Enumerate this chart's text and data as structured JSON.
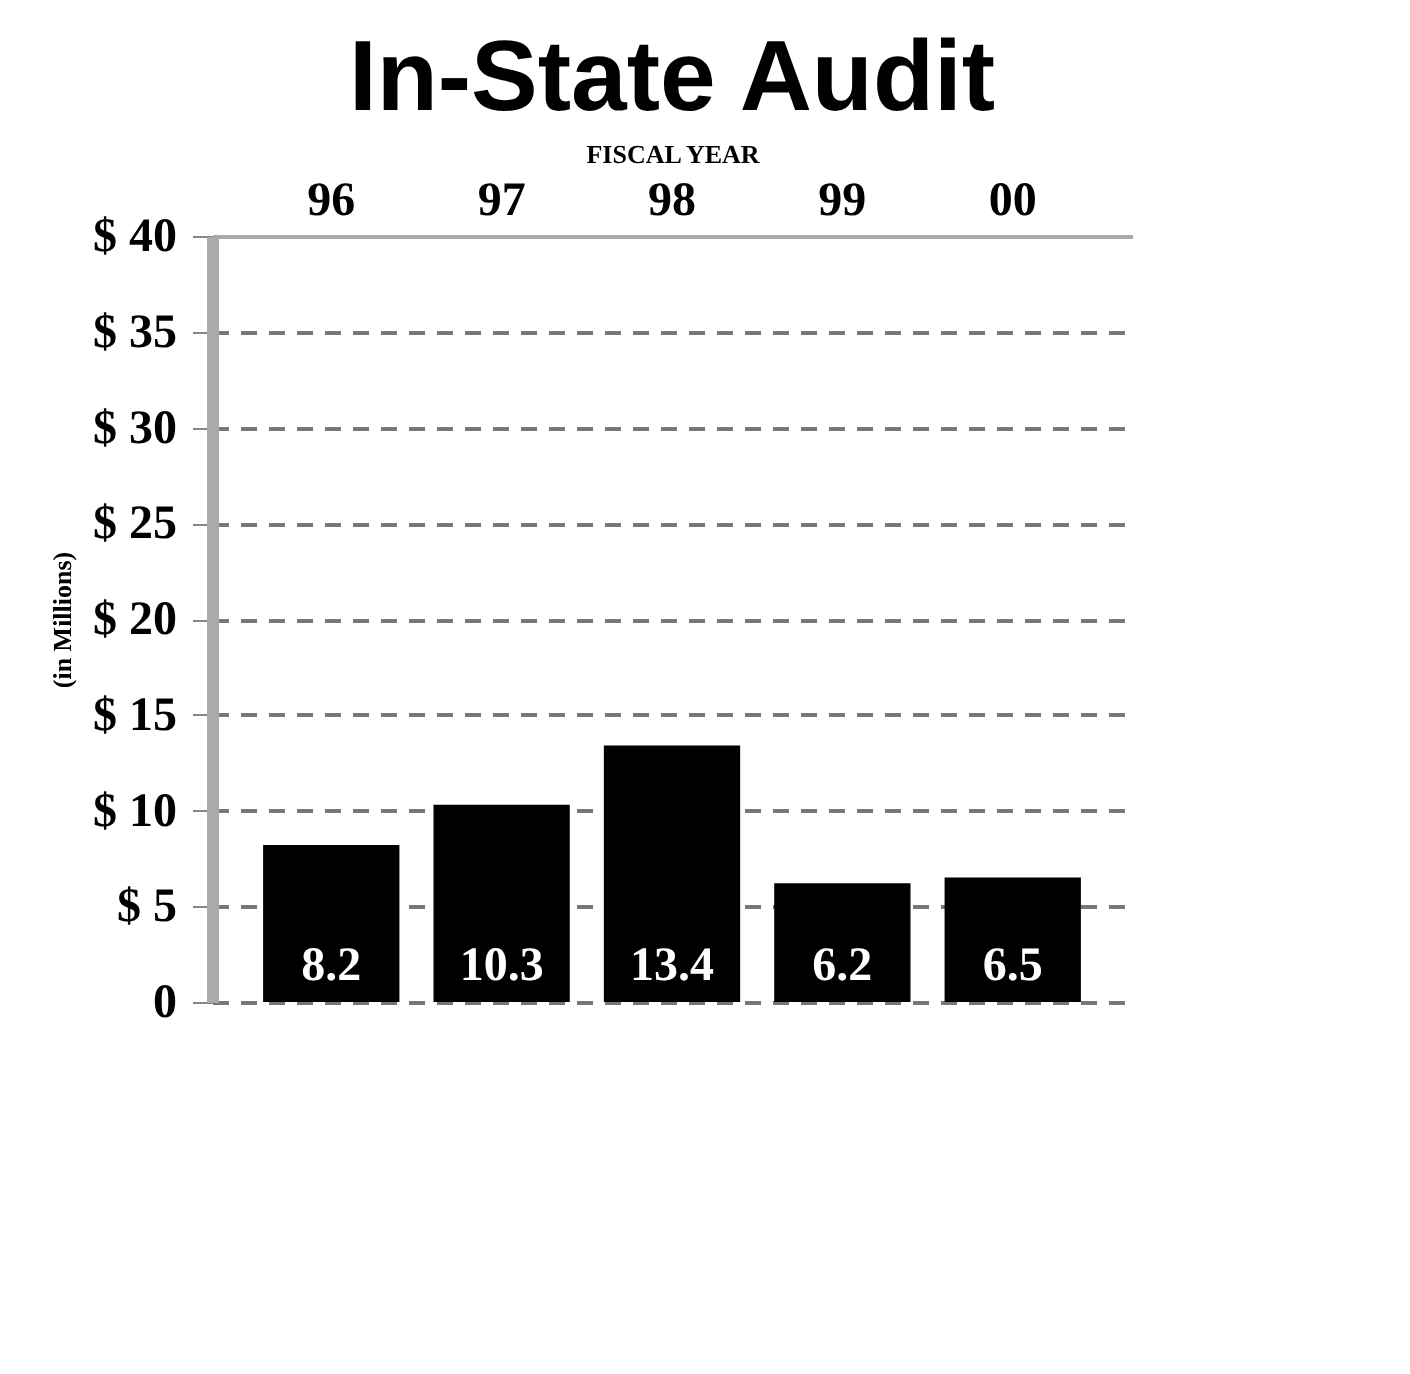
{
  "chart_data": {
    "type": "bar",
    "title": "In-State Audit",
    "xlabel": "FISCAL YEAR",
    "ylabel": "(in Millions)",
    "categories": [
      "96",
      "97",
      "98",
      "99",
      "00"
    ],
    "values": [
      8.2,
      10.3,
      13.4,
      6.2,
      6.5
    ],
    "color": "#000000",
    "data_labels": true,
    "ylim": [
      0,
      40
    ],
    "yticks": [
      {
        "value": 0,
        "label": "0"
      },
      {
        "value": 5,
        "label": "$  5"
      },
      {
        "value": 10,
        "label": "$ 10"
      },
      {
        "value": 15,
        "label": "$ 15"
      },
      {
        "value": 20,
        "label": "$ 20"
      },
      {
        "value": 25,
        "label": "$ 25"
      },
      {
        "value": 30,
        "label": "$ 30"
      },
      {
        "value": 35,
        "label": "$ 35"
      },
      {
        "value": 40,
        "label": "$ 40"
      }
    ],
    "grid": "y"
  }
}
